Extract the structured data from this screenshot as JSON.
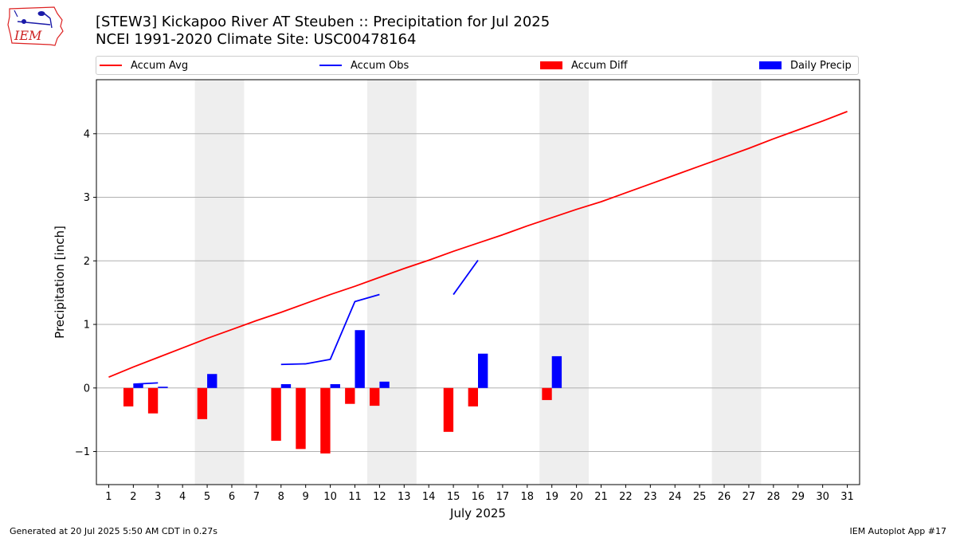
{
  "title": "[STEW3] Kickapoo River  AT Steuben :: Precipitation for Jul 2025",
  "subtitle": "NCEI 1991-2020 Climate Site: USC00478164",
  "logo": {
    "text": "IEM",
    "icon": "iem-iowa-logo-icon"
  },
  "footer": {
    "left": "Generated at 20 Jul 2025 5:50 AM CDT in 0.27s",
    "right": "IEM Autoplot App #17"
  },
  "chart_data": {
    "type": "bar",
    "xlabel": "July 2025",
    "ylabel": "Precipitation [inch]",
    "xlim": [
      0.5,
      31.5
    ],
    "ylim": [
      -1.52,
      4.85
    ],
    "yticks": [
      -1,
      0,
      1,
      2,
      3,
      4
    ],
    "ytick_labels": [
      "−1",
      "0",
      "1",
      "2",
      "3",
      "4"
    ],
    "grid": "horizontal",
    "legend_position": "top",
    "weekend_shading": [
      [
        4.5,
        6.5
      ],
      [
        11.5,
        13.5
      ],
      [
        18.5,
        20.5
      ],
      [
        25.5,
        27.5
      ]
    ],
    "x": [
      1,
      2,
      3,
      4,
      5,
      6,
      7,
      8,
      9,
      10,
      11,
      12,
      13,
      14,
      15,
      16,
      17,
      18,
      19,
      20,
      21,
      22,
      23,
      24,
      25,
      26,
      27,
      28,
      29,
      30,
      31
    ],
    "x_tick_labels": [
      "1",
      "2",
      "3",
      "4",
      "5",
      "6",
      "7",
      "8",
      "9",
      "10",
      "11",
      "12",
      "13",
      "14",
      "15",
      "16",
      "17",
      "18",
      "19",
      "20",
      "21",
      "22",
      "23",
      "24",
      "25",
      "26",
      "27",
      "28",
      "29",
      "30",
      "31"
    ],
    "series": [
      {
        "name": "Accum Avg",
        "type": "line",
        "color": "#ff0000",
        "values": [
          0.17,
          0.33,
          0.48,
          0.63,
          0.78,
          0.92,
          1.06,
          1.19,
          1.33,
          1.47,
          1.6,
          1.74,
          1.88,
          2.01,
          2.15,
          2.28,
          2.41,
          2.55,
          2.68,
          2.81,
          2.93,
          3.07,
          3.21,
          3.35,
          3.49,
          3.63,
          3.77,
          3.92,
          4.06,
          4.2,
          4.35
        ]
      },
      {
        "name": "Accum Obs",
        "type": "line",
        "color": "#0000ff",
        "values": [
          null,
          0.06,
          0.08,
          null,
          null,
          null,
          null,
          0.37,
          0.38,
          0.45,
          1.36,
          1.47,
          null,
          null,
          1.47,
          2.01,
          null,
          null,
          null,
          null,
          null,
          null,
          null,
          null,
          null,
          null,
          null,
          null,
          null,
          null,
          null
        ]
      },
      {
        "name": "Accum Diff",
        "type": "bar",
        "color": "#ff0000",
        "values": [
          null,
          -0.29,
          -0.4,
          null,
          -0.49,
          null,
          null,
          -0.83,
          -0.96,
          -1.03,
          -0.25,
          -0.28,
          null,
          null,
          -0.69,
          -0.29,
          null,
          null,
          -0.19,
          null,
          null,
          null,
          null,
          null,
          null,
          null,
          null,
          null,
          null,
          null,
          null
        ]
      },
      {
        "name": "Daily Precip",
        "type": "bar",
        "color": "#0000ff",
        "values": [
          null,
          0.06,
          0.02,
          null,
          0.22,
          null,
          null,
          0.06,
          null,
          0.06,
          0.91,
          0.1,
          null,
          null,
          null,
          0.54,
          null,
          null,
          0.5,
          null,
          null,
          null,
          null,
          null,
          null,
          null,
          null,
          null,
          null,
          null,
          null
        ]
      }
    ]
  }
}
